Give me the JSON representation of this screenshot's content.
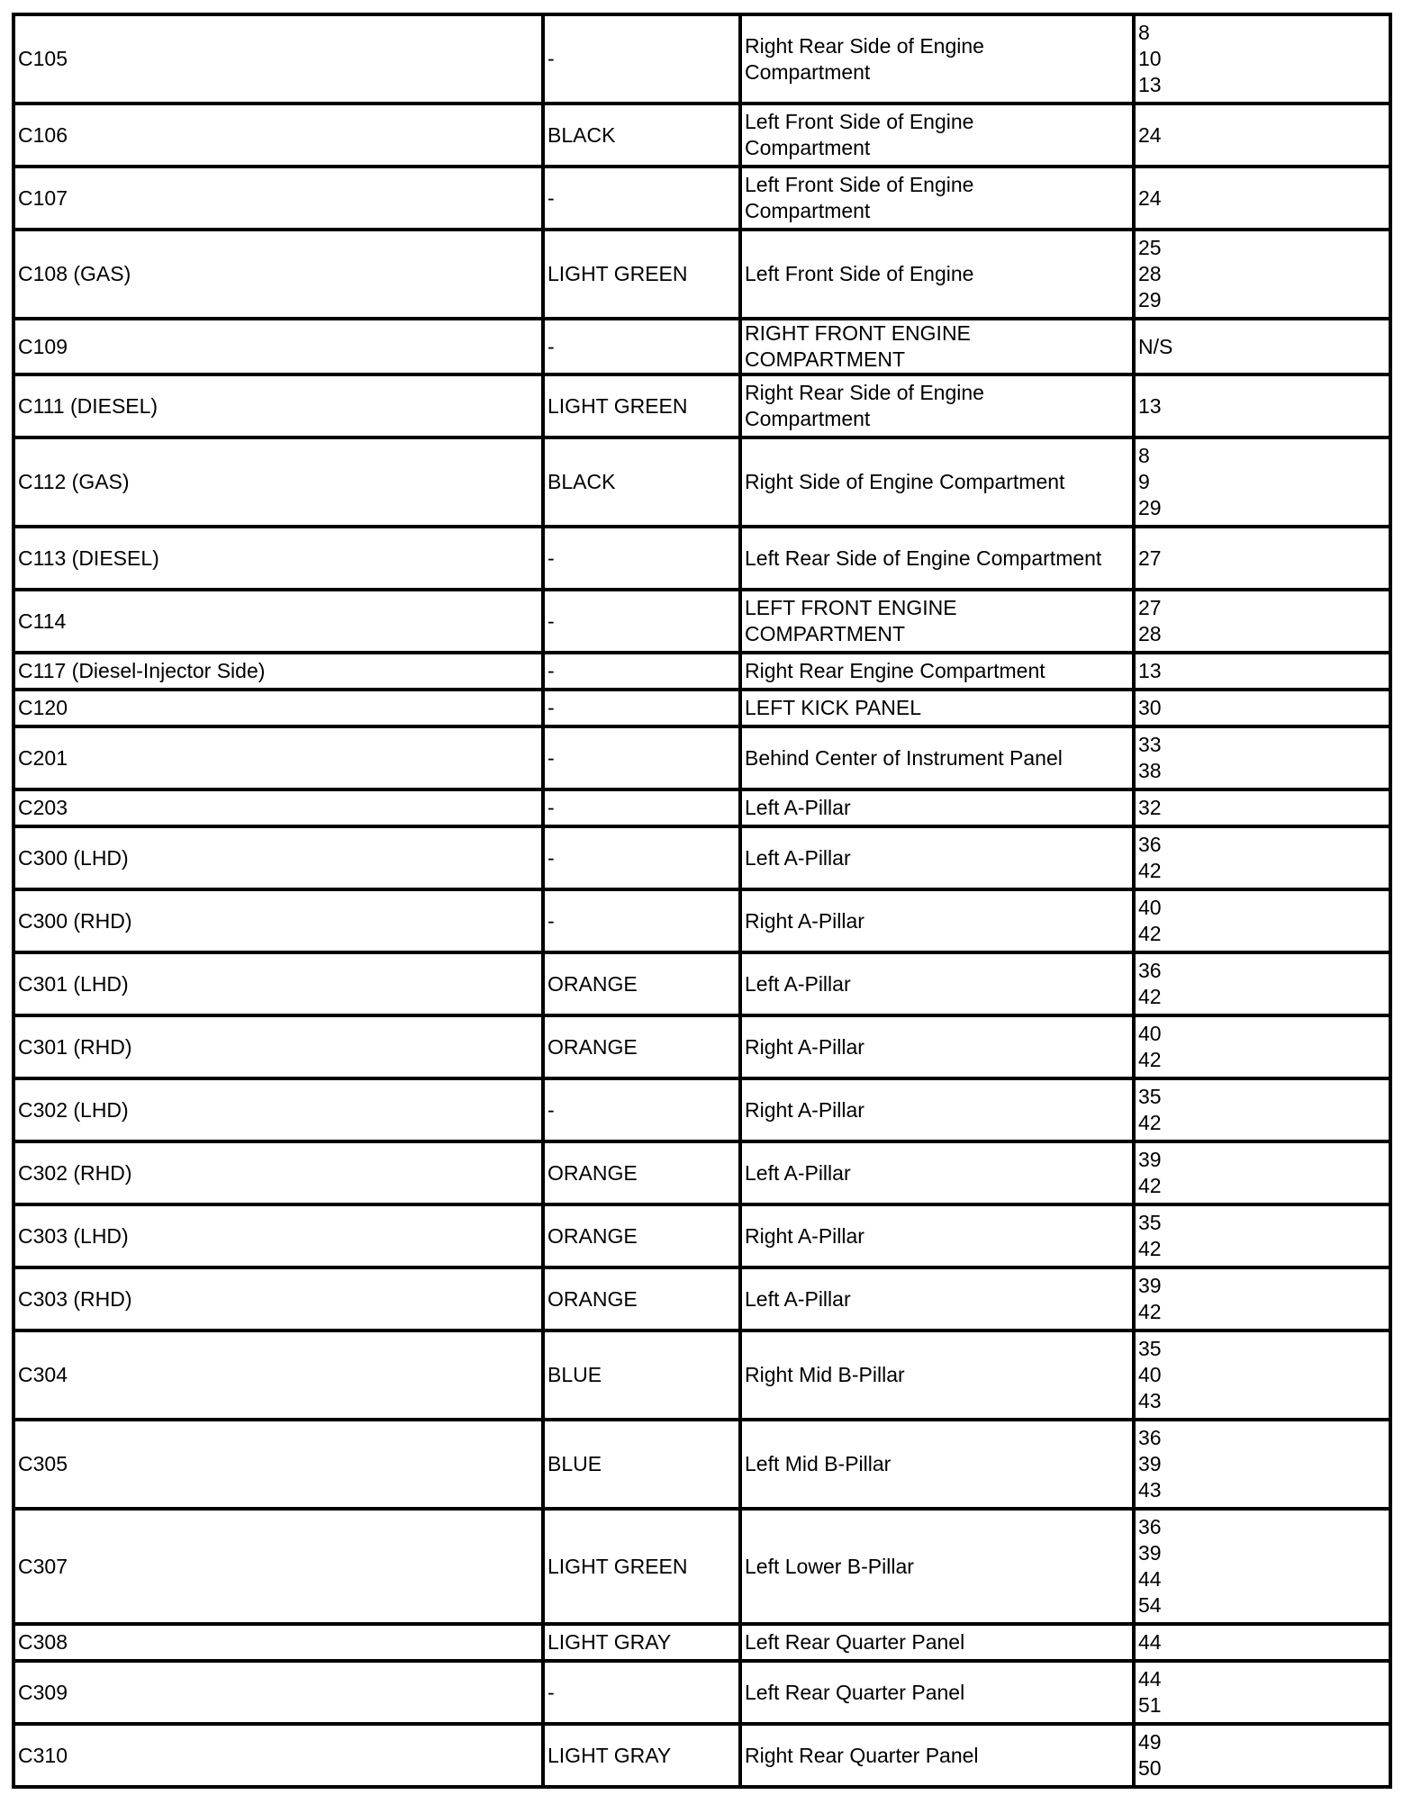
{
  "rows": [
    {
      "connector": "C105",
      "color": "-",
      "location": "Right Rear Side of Engine Compartment",
      "pages": [
        "8",
        "10",
        "13"
      ]
    },
    {
      "connector": "C106",
      "color": "BLACK",
      "location": "Left Front Side of Engine Compartment",
      "pages": [
        "24"
      ]
    },
    {
      "connector": "C107",
      "color": "-",
      "location": "Left Front Side of Engine Compartment",
      "pages": [
        "24"
      ]
    },
    {
      "connector": "C108 (GAS)",
      "color": "LIGHT GREEN",
      "location": "Left Front Side of Engine",
      "pages": [
        "25",
        "28",
        "29"
      ]
    },
    {
      "connector": "C109",
      "color": "-",
      "location": "RIGHT FRONT ENGINE COMPARTMENT",
      "pages": [
        "N/S"
      ]
    },
    {
      "connector": "C111 (DIESEL)",
      "color": "LIGHT GREEN",
      "location": "Right Rear Side of Engine Compartment",
      "pages": [
        "13"
      ]
    },
    {
      "connector": "C112 (GAS)",
      "color": "BLACK",
      "location": "Right Side of Engine Compartment",
      "pages": [
        "8",
        "9",
        "29"
      ]
    },
    {
      "connector": "C113 (DIESEL)",
      "color": "-",
      "location": "Left Rear Side of Engine Compartment",
      "pages": [
        "27"
      ]
    },
    {
      "connector": "C114",
      "color": "-",
      "location": "LEFT FRONT ENGINE COMPARTMENT",
      "pages": [
        "27",
        "28"
      ]
    },
    {
      "connector": "C117 (Diesel-Injector Side)",
      "color": "-",
      "location": "Right Rear Engine Compartment",
      "pages": [
        "13"
      ]
    },
    {
      "connector": "C120",
      "color": "-",
      "location": "LEFT KICK PANEL",
      "pages": [
        "30"
      ]
    },
    {
      "connector": "C201",
      "color": "-",
      "location": "Behind Center of Instrument Panel",
      "pages": [
        "33",
        "38"
      ]
    },
    {
      "connector": "C203",
      "color": "-",
      "location": "Left A-Pillar",
      "pages": [
        "32"
      ]
    },
    {
      "connector": "C300 (LHD)",
      "color": "-",
      "location": "Left A-Pillar",
      "pages": [
        "36",
        "42"
      ]
    },
    {
      "connector": "C300 (RHD)",
      "color": "-",
      "location": "Right A-Pillar",
      "pages": [
        "40",
        "42"
      ]
    },
    {
      "connector": "C301 (LHD)",
      "color": "ORANGE",
      "location": "Left A-Pillar",
      "pages": [
        "36",
        "42"
      ]
    },
    {
      "connector": "C301 (RHD)",
      "color": "ORANGE",
      "location": "Right A-Pillar",
      "pages": [
        "40",
        "42"
      ]
    },
    {
      "connector": "C302 (LHD)",
      "color": "-",
      "location": "Right A-Pillar",
      "pages": [
        "35",
        "42"
      ]
    },
    {
      "connector": "C302 (RHD)",
      "color": "ORANGE",
      "location": "Left A-Pillar",
      "pages": [
        "39",
        "42"
      ]
    },
    {
      "connector": "C303 (LHD)",
      "color": "ORANGE",
      "location": "Right A-Pillar",
      "pages": [
        "35",
        "42"
      ]
    },
    {
      "connector": "C303 (RHD)",
      "color": "ORANGE",
      "location": "Left A-Pillar",
      "pages": [
        "39",
        "42"
      ]
    },
    {
      "connector": "C304",
      "color": "BLUE",
      "location": "Right Mid B-Pillar",
      "pages": [
        "35",
        "40",
        "43"
      ]
    },
    {
      "connector": "C305",
      "color": "BLUE",
      "location": "Left Mid B-Pillar",
      "pages": [
        "36",
        "39",
        "43"
      ]
    },
    {
      "connector": "C307",
      "color": "LIGHT GREEN",
      "location": "Left Lower B-Pillar",
      "pages": [
        "36",
        "39",
        "44",
        "54"
      ]
    },
    {
      "connector": "C308",
      "color": "LIGHT GRAY",
      "location": "Left Rear Quarter Panel",
      "pages": [
        "44"
      ]
    },
    {
      "connector": "C309",
      "color": "-",
      "location": "Left Rear Quarter Panel",
      "pages": [
        "44",
        "51"
      ]
    },
    {
      "connector": "C310",
      "color": "LIGHT GRAY",
      "location": "Right Rear Quarter Panel",
      "pages": [
        "49",
        "50"
      ]
    }
  ]
}
